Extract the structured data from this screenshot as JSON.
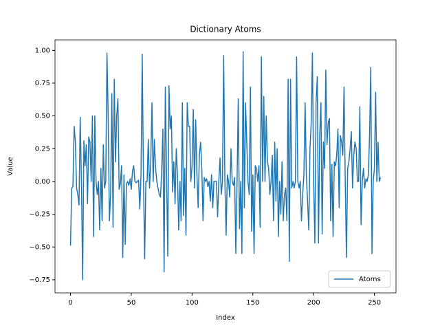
{
  "chart_data": {
    "type": "line",
    "title": "Dictionary Atoms",
    "x_label": "Index",
    "y_label": "Value",
    "x": [
      0,
      1,
      2,
      3,
      4,
      5,
      6,
      7,
      8,
      9,
      10,
      11,
      12,
      13,
      14,
      15,
      16,
      17,
      18,
      19,
      20,
      21,
      22,
      23,
      24,
      25,
      26,
      27,
      28,
      29,
      30,
      31,
      32,
      33,
      34,
      35,
      36,
      37,
      38,
      39,
      40,
      41,
      42,
      43,
      44,
      45,
      46,
      47,
      48,
      49,
      50,
      51,
      52,
      53,
      54,
      55,
      56,
      57,
      58,
      59,
      60,
      61,
      62,
      63,
      64,
      65,
      66,
      67,
      68,
      69,
      70,
      71,
      72,
      73,
      74,
      75,
      76,
      77,
      78,
      79,
      80,
      81,
      82,
      83,
      84,
      85,
      86,
      87,
      88,
      89,
      90,
      91,
      92,
      93,
      94,
      95,
      96,
      97,
      98,
      99,
      100,
      101,
      102,
      103,
      104,
      105,
      106,
      107,
      108,
      109,
      110,
      111,
      112,
      113,
      114,
      115,
      116,
      117,
      118,
      119,
      120,
      121,
      122,
      123,
      124,
      125,
      126,
      127,
      128,
      129,
      130,
      131,
      132,
      133,
      134,
      135,
      136,
      137,
      138,
      139,
      140,
      141,
      142,
      143,
      144,
      145,
      146,
      147,
      148,
      149,
      150,
      151,
      152,
      153,
      154,
      155,
      156,
      157,
      158,
      159,
      160,
      161,
      162,
      163,
      164,
      165,
      166,
      167,
      168,
      169,
      170,
      171,
      172,
      173,
      174,
      175,
      176,
      177,
      178,
      179,
      180,
      181,
      182,
      183,
      184,
      185,
      186,
      187,
      188,
      189,
      190,
      191,
      192,
      193,
      194,
      195,
      196,
      197,
      198,
      199,
      200,
      201,
      202,
      203,
      204,
      205,
      206,
      207,
      208,
      209,
      210,
      211,
      212,
      213,
      214,
      215,
      216,
      217,
      218,
      219,
      220,
      221,
      222,
      223,
      224,
      225,
      226,
      227,
      228,
      229,
      230,
      231,
      232,
      233,
      234,
      235,
      236,
      237,
      238,
      239,
      240,
      241,
      242,
      243,
      244,
      245,
      246,
      247,
      248,
      249,
      250,
      251,
      252,
      253,
      254,
      255
    ],
    "series": [
      {
        "name": "Atoms",
        "color": "#1f77b4",
        "values": [
          -0.49,
          -0.05,
          -0.04,
          0.42,
          0.3,
          -0.05,
          -0.1,
          -0.18,
          0.49,
          0.0,
          -0.75,
          0.31,
          0.12,
          0.28,
          -0.17,
          0.34,
          0.3,
          0.0,
          0.5,
          -0.42,
          0.5,
          0.0,
          -0.1,
          0.0,
          -0.37,
          0.1,
          -0.3,
          0.28,
          -0.05,
          0.0,
          0.98,
          0.5,
          -0.3,
          -0.1,
          0.67,
          -0.35,
          0.78,
          0.15,
          0.5,
          0.63,
          -0.06,
          -0.02,
          0.12,
          -0.58,
          0.05,
          -0.48,
          -0.02,
          0.0,
          -0.03,
          0.02,
          -0.06,
          0.08,
          0.12,
          0.0,
          -0.01,
          0.0,
          0.01,
          -0.21,
          0.05,
          0.97,
          0.05,
          -0.59,
          0.0,
          0.0,
          0.32,
          -0.05,
          0.14,
          0.6,
          0.0,
          0.32,
          0.1,
          0.0,
          -0.05,
          -0.1,
          -0.12,
          0.08,
          0.4,
          -0.69,
          0.72,
          0.08,
          -0.57,
          0.73,
          0.4,
          0.5,
          -0.08,
          0.15,
          -0.17,
          0.25,
          0.05,
          -0.37,
          0.0,
          -0.3,
          0.6,
          -0.26,
          0.1,
          -0.41,
          0.6,
          0.42,
          0.42,
          0.0,
          0.12,
          0.55,
          -0.05,
          0.47,
          0.05,
          -0.2,
          0.2,
          0.3,
          0.1,
          -0.3,
          0.03,
          0.0,
          0.02,
          -0.04,
          0.0,
          -0.15,
          0.05,
          -0.2,
          0.0,
          0.0,
          0.0,
          -0.27,
          0.0,
          0.18,
          -0.1,
          0.0,
          0.96,
          0.0,
          -0.41,
          0.05,
          0.0,
          -0.12,
          0.25,
          0.0,
          -0.03,
          0.03,
          -0.55,
          0.0,
          0.63,
          -0.36,
          0.0,
          -0.55,
          0.99,
          -0.2,
          0.6,
          0.3,
          0.0,
          -0.1,
          0.72,
          -0.38,
          0.05,
          -0.55,
          0.12,
          0.1,
          0.0,
          0.12,
          -0.35,
          0.95,
          0.0,
          0.65,
          0.0,
          0.5,
          0.15,
          0.1,
          -0.1,
          0.0,
          0.2,
          -0.3,
          0.3,
          -0.15,
          0.25,
          -0.42,
          0.0,
          -0.25,
          0.15,
          -0.3,
          -0.1,
          -0.05,
          -0.3,
          0.78,
          -0.61,
          0.78,
          -0.05,
          0.0,
          -0.05,
          0.0,
          0.95,
          0.0,
          -0.05,
          0.0,
          -0.3,
          -0.1,
          0.05,
          0.6,
          0.05,
          -0.15,
          -0.37,
          0.25,
          0.45,
          0.98,
          0.0,
          -0.47,
          0.6,
          0.8,
          -0.47,
          0.35,
          0.6,
          -0.4,
          0.3,
          0.1,
          0.85,
          0.28,
          0.45,
          0.48,
          -0.3,
          0.13,
          -0.42,
          0.15,
          0.12,
          0.2,
          0.4,
          -0.2,
          0.35,
          0.3,
          0.2,
          0.72,
          0.0,
          -0.58,
          0.1,
          0.15,
          0.25,
          0.38,
          -0.05,
          0.2,
          0.3,
          0.25,
          0.0,
          0.0,
          0.57,
          -0.33,
          0.0,
          0.1,
          -0.05,
          0.02,
          0.0,
          0.05,
          0.35,
          0.87,
          -0.55,
          0.0,
          0.1,
          0.68,
          0.0,
          0.3,
          0.0,
          0.03
        ]
      }
    ],
    "xlim": [
      -12.75,
      267.75
    ],
    "xticks": [
      0,
      50,
      100,
      150,
      200,
      250
    ],
    "ylim": [
      -0.85,
      1.08
    ],
    "yticks": [
      {
        "value": -0.75,
        "label": "−0.75"
      },
      {
        "value": -0.5,
        "label": "−0.50"
      },
      {
        "value": -0.25,
        "label": "−0.25"
      },
      {
        "value": 0,
        "label": "0.00"
      },
      {
        "value": 0.25,
        "label": "0.25"
      },
      {
        "value": 0.5,
        "label": "0.50"
      },
      {
        "value": 0.75,
        "label": "0.75"
      },
      {
        "value": 1,
        "label": "1.00"
      }
    ],
    "legend": "lower right"
  }
}
